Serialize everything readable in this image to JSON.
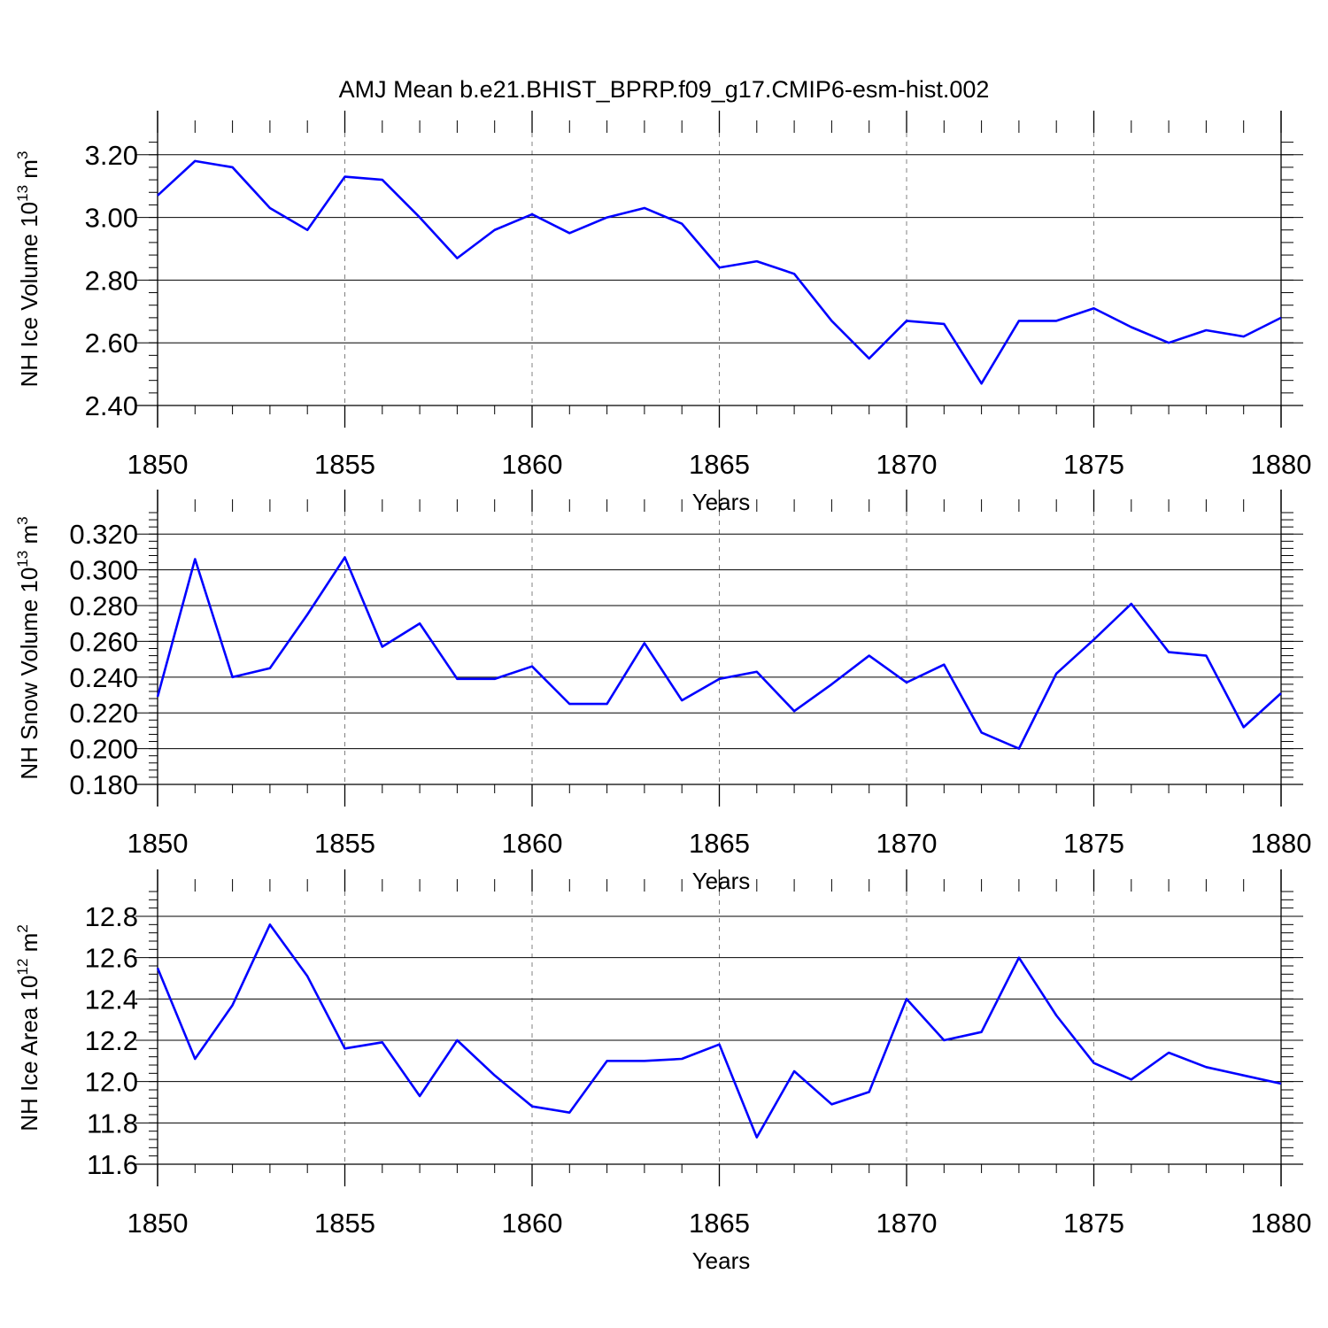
{
  "figure": {
    "title": "AMJ Mean b.e21.BHIST_BPRP.f09_g17.CMIP6-esm-hist.002"
  },
  "colors": {
    "series": "#0000ff",
    "axes": "#000000",
    "grid": "#808080",
    "background": "#ffffff"
  },
  "chart_data": [
    {
      "type": "line",
      "title": "",
      "xlabel": "Years",
      "ylabel": {
        "text": "NH Ice Volume 10",
        "sup": "13",
        "unit": " m",
        "unit_sup": "3"
      },
      "xlim": [
        1850,
        1880
      ],
      "ylim": [
        2.4,
        3.27
      ],
      "xticks": [
        1850,
        1855,
        1860,
        1865,
        1870,
        1875,
        1880
      ],
      "xtick_labels": [
        "1850",
        "1855",
        "1860",
        "1865",
        "1870",
        "1875",
        "1880"
      ],
      "yticks": [
        2.4,
        2.6,
        2.8,
        3.0,
        3.2
      ],
      "ytick_labels": [
        "2.40",
        "2.60",
        "2.80",
        "3.00",
        "3.20"
      ],
      "grid": "vertical dashed at major x ticks",
      "x": [
        1850,
        1851,
        1852,
        1853,
        1854,
        1855,
        1856,
        1857,
        1858,
        1859,
        1860,
        1861,
        1862,
        1863,
        1864,
        1865,
        1866,
        1867,
        1868,
        1869,
        1870,
        1871,
        1872,
        1873,
        1874,
        1875,
        1876,
        1877,
        1878,
        1879,
        1880
      ],
      "series": [
        {
          "values": [
            3.07,
            3.18,
            3.16,
            3.03,
            2.96,
            3.13,
            3.12,
            3.0,
            2.87,
            2.96,
            3.01,
            2.95,
            3.0,
            3.03,
            2.98,
            2.84,
            2.86,
            2.82,
            2.67,
            2.55,
            2.67,
            2.66,
            2.47,
            2.67,
            2.67,
            2.71,
            2.65,
            2.6,
            2.64,
            2.62,
            2.68
          ]
        }
      ]
    },
    {
      "type": "line",
      "title": "",
      "xlabel": "Years",
      "ylabel": {
        "text": "NH Snow Volume 10",
        "sup": "13",
        "unit": " m",
        "unit_sup": "3"
      },
      "xlim": [
        1850,
        1880
      ],
      "ylim": [
        0.18,
        0.3325
      ],
      "xticks": [
        1850,
        1855,
        1860,
        1865,
        1870,
        1875,
        1880
      ],
      "xtick_labels": [
        "1850",
        "1855",
        "1860",
        "1865",
        "1870",
        "1875",
        "1880"
      ],
      "yticks": [
        0.18,
        0.2,
        0.22,
        0.24,
        0.26,
        0.28,
        0.3,
        0.32
      ],
      "ytick_labels": [
        "0.180",
        "0.200",
        "0.220",
        "0.240",
        "0.260",
        "0.280",
        "0.300",
        "0.320"
      ],
      "grid": "vertical dashed at major x ticks",
      "x": [
        1850,
        1851,
        1852,
        1853,
        1854,
        1855,
        1856,
        1857,
        1858,
        1859,
        1860,
        1861,
        1862,
        1863,
        1864,
        1865,
        1866,
        1867,
        1868,
        1869,
        1870,
        1871,
        1872,
        1873,
        1874,
        1875,
        1876,
        1877,
        1878,
        1879,
        1880
      ],
      "series": [
        {
          "values": [
            0.229,
            0.306,
            0.24,
            0.245,
            0.275,
            0.307,
            0.257,
            0.27,
            0.239,
            0.239,
            0.246,
            0.225,
            0.225,
            0.259,
            0.227,
            0.239,
            0.243,
            0.221,
            0.236,
            0.252,
            0.237,
            0.247,
            0.209,
            0.2,
            0.242,
            0.261,
            0.281,
            0.254,
            0.252,
            0.212,
            0.231
          ]
        }
      ]
    },
    {
      "type": "line",
      "title": "",
      "xlabel": "Years",
      "ylabel": {
        "text": "NH Ice Area 10",
        "sup": "12",
        "unit": " m",
        "unit_sup": "2"
      },
      "xlim": [
        1850,
        1880
      ],
      "ylim": [
        11.6,
        12.92
      ],
      "xticks": [
        1850,
        1855,
        1860,
        1865,
        1870,
        1875,
        1880
      ],
      "xtick_labels": [
        "1850",
        "1855",
        "1860",
        "1865",
        "1870",
        "1875",
        "1880"
      ],
      "yticks": [
        11.6,
        11.8,
        12.0,
        12.2,
        12.4,
        12.6,
        12.8
      ],
      "ytick_labels": [
        "11.6",
        "11.8",
        "12.0",
        "12.2",
        "12.4",
        "12.6",
        "12.8"
      ],
      "grid": "vertical dashed at major x ticks",
      "x": [
        1850,
        1851,
        1852,
        1853,
        1854,
        1855,
        1856,
        1857,
        1858,
        1859,
        1860,
        1861,
        1862,
        1863,
        1864,
        1865,
        1866,
        1867,
        1868,
        1869,
        1870,
        1871,
        1872,
        1873,
        1874,
        1875,
        1876,
        1877,
        1878,
        1879,
        1880
      ],
      "series": [
        {
          "values": [
            12.55,
            12.11,
            12.37,
            12.76,
            12.51,
            12.16,
            12.19,
            11.93,
            12.2,
            12.03,
            11.88,
            11.85,
            12.1,
            12.1,
            12.11,
            12.18,
            11.73,
            12.05,
            11.89,
            11.95,
            12.4,
            12.2,
            12.24,
            12.6,
            12.32,
            12.09,
            12.01,
            12.14,
            12.07,
            12.03,
            11.99
          ]
        }
      ]
    }
  ]
}
